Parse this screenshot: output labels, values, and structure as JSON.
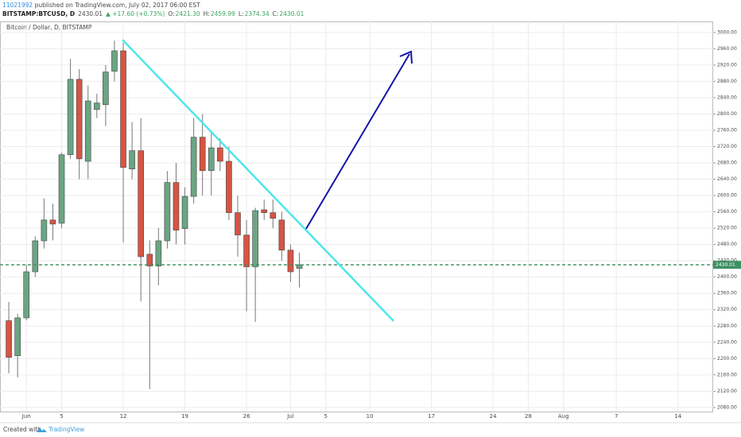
{
  "header": {
    "user": "11021992",
    "published": " published on TradingView.com, July 02, 2017 06:00 EST",
    "symbol": "BITSTAMP:BTCUSD, D",
    "last": "2430.01",
    "change": "▲ +17.60 (+0.73%)",
    "ohlc": [
      {
        "k": "O:",
        "v": "2421.30"
      },
      {
        "k": "H:",
        "v": "2459.99"
      },
      {
        "k": "L:",
        "v": "2374.34"
      },
      {
        "k": "C:",
        "v": "2430.01"
      }
    ]
  },
  "footer": {
    "created": "Created with",
    "brand": "TradingView"
  },
  "chart_data": {
    "type": "candlestick",
    "legend": "Bitcoin / Dollar, D, BITSTAMP",
    "up_color": "#6ba583",
    "down_color": "#d75442",
    "grid": true,
    "x": [
      -2,
      -1,
      0,
      1,
      2,
      3,
      4,
      5,
      6,
      7,
      8,
      9,
      10,
      11,
      12,
      13,
      14,
      15,
      16,
      17,
      18,
      19,
      20,
      21,
      22,
      23,
      24,
      25,
      26,
      27,
      28,
      29,
      30,
      31
    ],
    "open": [
      2293,
      2207,
      2300,
      2413,
      2489,
      2540,
      2532,
      2700,
      2885,
      2684,
      2811,
      2823,
      2905,
      2955,
      2665,
      2710,
      2456,
      2427,
      2489,
      2632,
      2519,
      2598,
      2743,
      2661,
      2717,
      2684,
      2558,
      2503,
      2425,
      2565,
      2558,
      2540,
      2466,
      2421.3
    ],
    "high": [
      2339,
      2310,
      2431,
      2500,
      2593,
      2580,
      2705,
      2935,
      2910,
      2870,
      2850,
      2920,
      2980,
      2975,
      2780,
      2790,
      2490,
      2520,
      2660,
      2680,
      2620,
      2790,
      2800,
      2760,
      2740,
      2720,
      2600,
      2540,
      2570,
      2590,
      2590,
      2560,
      2480,
      2459.99
    ],
    "low": [
      2164,
      2154,
      2294,
      2400,
      2470,
      2490,
      2520,
      2690,
      2640,
      2640,
      2790,
      2770,
      2880,
      2485,
      2640,
      2340,
      2125,
      2380,
      2470,
      2480,
      2480,
      2580,
      2600,
      2600,
      2660,
      2540,
      2450,
      2316,
      2290,
      2540,
      2520,
      2440,
      2388,
      2374.34
    ],
    "close": [
      2203,
      2300,
      2413,
      2489,
      2540,
      2530,
      2700,
      2885,
      2690,
      2832,
      2827,
      2903,
      2955,
      2669,
      2710,
      2450,
      2427,
      2489,
      2632,
      2515,
      2598,
      2743,
      2661,
      2717,
      2684,
      2558,
      2503,
      2425,
      2563,
      2558,
      2544,
      2466,
      2413,
      2430.01
    ],
    "xlim": [
      -3,
      78
    ],
    "xticks": [
      {
        "value": 0,
        "label": "Jun"
      },
      {
        "value": 4,
        "label": "5"
      },
      {
        "value": 11,
        "label": "12"
      },
      {
        "value": 18,
        "label": "19"
      },
      {
        "value": 25,
        "label": "26"
      },
      {
        "value": 30,
        "label": "Jul"
      },
      {
        "value": 34,
        "label": "5"
      },
      {
        "value": 39,
        "label": "10"
      },
      {
        "value": 46,
        "label": "17"
      },
      {
        "value": 53,
        "label": "24"
      },
      {
        "value": 57,
        "label": "28"
      },
      {
        "value": 61,
        "label": "Aug"
      },
      {
        "value": 67,
        "label": "7"
      },
      {
        "value": 74,
        "label": "14"
      }
    ],
    "ylim": [
      2070,
      3027
    ],
    "yticks": [
      {
        "value": 2080,
        "label": "2080.00"
      },
      {
        "value": 2120,
        "label": "2120.00"
      },
      {
        "value": 2160,
        "label": "2160.00"
      },
      {
        "value": 2200,
        "label": "2200.00"
      },
      {
        "value": 2240,
        "label": "2240.00"
      },
      {
        "value": 2280,
        "label": "2280.00"
      },
      {
        "value": 2320,
        "label": "2320.00"
      },
      {
        "value": 2360,
        "label": "2360.00"
      },
      {
        "value": 2400,
        "label": "2400.00"
      },
      {
        "value": 2440,
        "label": "2440.00"
      },
      {
        "value": 2480,
        "label": "2480.00"
      },
      {
        "value": 2520,
        "label": "2520.00"
      },
      {
        "value": 2560,
        "label": "2560.00"
      },
      {
        "value": 2600,
        "label": "2600.00"
      },
      {
        "value": 2640,
        "label": "2640.00"
      },
      {
        "value": 2680,
        "label": "2680.00"
      },
      {
        "value": 2720,
        "label": "2720.00"
      },
      {
        "value": 2760,
        "label": "2760.00"
      },
      {
        "value": 2800,
        "label": "2800.00"
      },
      {
        "value": 2840,
        "label": "2840.00"
      },
      {
        "value": 2880,
        "label": "2880.00"
      },
      {
        "value": 2920,
        "label": "2920.00"
      },
      {
        "value": 2960,
        "label": "2960.00"
      },
      {
        "value": 3000,
        "label": "3000.00"
      }
    ]
  }
}
